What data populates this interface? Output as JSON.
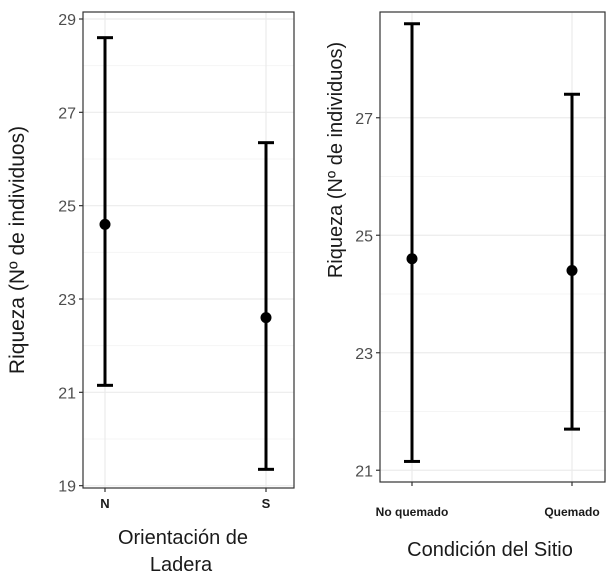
{
  "chart_data": [
    {
      "type": "errorbar",
      "title": "",
      "xlabel_line1": "Orientación de",
      "xlabel_line2": "Ladera",
      "ylabel": "Riqueza  (Nº de individuos)",
      "categories": [
        "N",
        "S"
      ],
      "points": [
        {
          "category": "N",
          "mean": 24.6,
          "lower": 21.15,
          "upper": 28.6
        },
        {
          "category": "S",
          "mean": 22.6,
          "lower": 19.35,
          "upper": 26.35
        }
      ],
      "ylim": [
        18.95,
        29.15
      ],
      "yticks": [
        19,
        21,
        23,
        25,
        27,
        29
      ],
      "ytick_labels": [
        "19",
        "21",
        "23",
        "25",
        "27",
        "29"
      ],
      "grid": true
    },
    {
      "type": "errorbar",
      "title": "",
      "xlabel": "Condición del Sitio",
      "ylabel": "Riqueza (Nº de individuos)",
      "categories": [
        "No quemado",
        "Quemado"
      ],
      "points": [
        {
          "category": "No quemado",
          "mean": 24.6,
          "lower": 21.15,
          "upper": 28.6
        },
        {
          "category": "Quemado",
          "mean": 24.4,
          "lower": 21.7,
          "upper": 27.4
        }
      ],
      "ylim": [
        20.8,
        28.8
      ],
      "yticks": [
        21,
        23,
        25,
        27
      ],
      "ytick_labels": [
        "21",
        "23",
        "25",
        "27"
      ],
      "grid": true
    }
  ],
  "colors": {
    "mark": "#000000",
    "panel_border": "#333333",
    "grid_major": "#ebebeb",
    "grid_minor": "#f5f5f5",
    "tick_text": "#4d4d4d"
  }
}
